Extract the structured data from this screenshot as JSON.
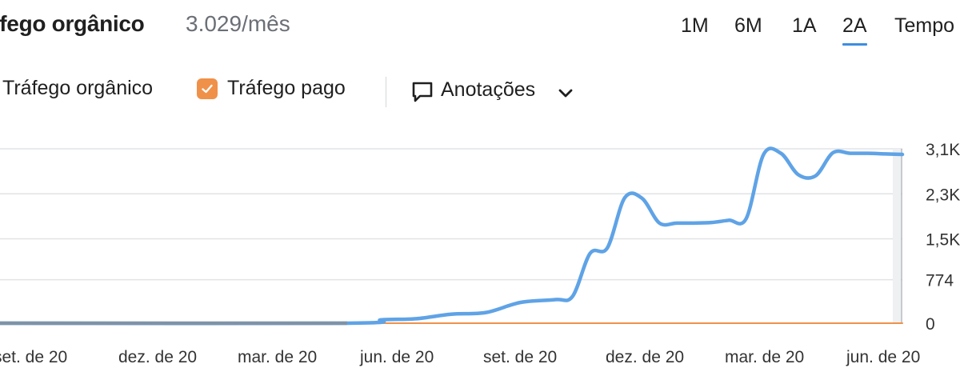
{
  "header": {
    "title": "áfego orgânico",
    "subtitle": "3.029/mês",
    "periods": [
      "1M",
      "6M",
      "1A",
      "2A",
      "Tempo"
    ],
    "active_period": "2A"
  },
  "legend": {
    "organic_label": "Tráfego orgânico",
    "paid_label": "Tráfego pago",
    "annotations_label": "Anotações",
    "paid_checkbox_color": "#f0914a"
  },
  "icons": {
    "checkbox": "check-icon",
    "annotations": "comment-icon",
    "dropdown": "chevron-down-icon"
  },
  "chart_data": {
    "type": "line",
    "x_tick_labels": [
      "set. de 20",
      "dez. de 20",
      "mar. de 20",
      "jun. de 20",
      "set. de 20",
      "dez. de 20",
      "mar. de 20",
      "jun. de 20"
    ],
    "y_tick_labels": [
      "3,1K",
      "2,3K",
      "1,5K",
      "774",
      "0"
    ],
    "y_ticks": [
      3100,
      2300,
      1500,
      774,
      0
    ],
    "ylim": [
      0,
      3100
    ],
    "xlim": [
      0,
      104
    ],
    "grid": true,
    "series": [
      {
        "name": "Tráfego orgânico",
        "color": "#5fa3e6",
        "x": [
          0,
          40,
          44,
          48,
          52,
          56,
          60,
          64,
          66,
          68,
          70,
          72,
          74,
          76,
          78,
          80,
          82,
          84,
          86,
          88,
          90,
          92,
          94,
          96,
          98,
          100,
          102,
          104
        ],
        "y": [
          0,
          0,
          60,
          80,
          160,
          190,
          370,
          420,
          480,
          1240,
          1340,
          2230,
          2220,
          1780,
          1780,
          1780,
          1790,
          1830,
          1860,
          3000,
          3020,
          2640,
          2620,
          3030,
          3020,
          3020,
          3010,
          3000
        ]
      },
      {
        "name": "Tráfego pago",
        "color": "#f0914a",
        "x": [
          0,
          104
        ],
        "y": [
          0,
          0
        ]
      }
    ]
  }
}
